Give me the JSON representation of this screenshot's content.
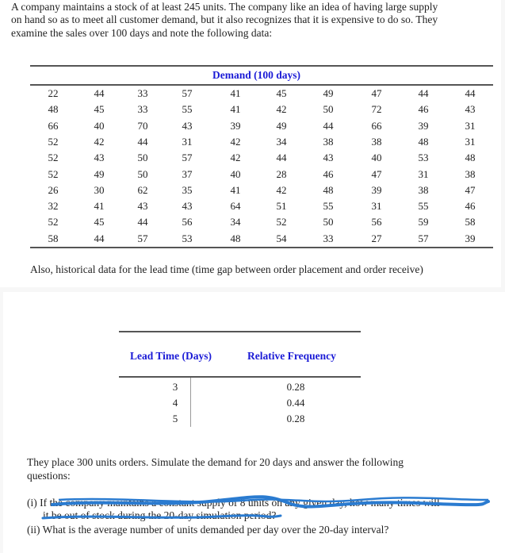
{
  "intro": [
    "A company maintains a stock of at least 245 units. The company like an idea of having large supply",
    "on hand so as to meet all customer demand, but it also recognizes that it is expensive to do so. They",
    "examine the sales over 100 days and note the following data:"
  ],
  "demand_table": {
    "header": "Demand (100 days)",
    "rows": [
      [
        "22",
        "44",
        "33",
        "57",
        "41",
        "45",
        "49",
        "47",
        "44",
        "44"
      ],
      [
        "48",
        "45",
        "33",
        "55",
        "41",
        "42",
        "50",
        "72",
        "46",
        "43"
      ],
      [
        "66",
        "40",
        "70",
        "43",
        "39",
        "49",
        "44",
        "66",
        "39",
        "31"
      ],
      [
        "52",
        "42",
        "44",
        "31",
        "42",
        "34",
        "38",
        "38",
        "48",
        "31"
      ],
      [
        "52",
        "43",
        "50",
        "57",
        "42",
        "44",
        "43",
        "40",
        "53",
        "48"
      ],
      [
        "52",
        "49",
        "50",
        "37",
        "40",
        "28",
        "46",
        "47",
        "31",
        "38"
      ],
      [
        "26",
        "30",
        "62",
        "35",
        "41",
        "42",
        "48",
        "39",
        "38",
        "47"
      ],
      [
        "32",
        "41",
        "43",
        "43",
        "64",
        "51",
        "55",
        "31",
        "55",
        "46"
      ],
      [
        "52",
        "45",
        "44",
        "56",
        "34",
        "52",
        "50",
        "56",
        "59",
        "58"
      ],
      [
        "58",
        "44",
        "57",
        "53",
        "48",
        "54",
        "33",
        "27",
        "57",
        "39"
      ]
    ]
  },
  "also_text": "Also, historical data for the lead time (time gap between order placement and order receive)",
  "lead_table": {
    "headers": [
      "Lead Time (Days)",
      "Relative Frequency"
    ],
    "rows": [
      [
        "3",
        "0.28"
      ],
      [
        "4",
        "0.44"
      ],
      [
        "5",
        "0.28"
      ]
    ]
  },
  "place_text": [
    "They place 300 units orders. Simulate the demand for 20 days and answer the following",
    "questions:"
  ],
  "q1": [
    "(i)  If the company maintains a constant supply of 8 units on any given day, how many times will",
    "it be out of stock during the 20-day simulation period?"
  ],
  "q2": "(ii)  What is the average number of units demanded per day over the 20-day interval?",
  "colors": {
    "header": "#1a1ad6",
    "scribble": "#2a7bd0"
  }
}
